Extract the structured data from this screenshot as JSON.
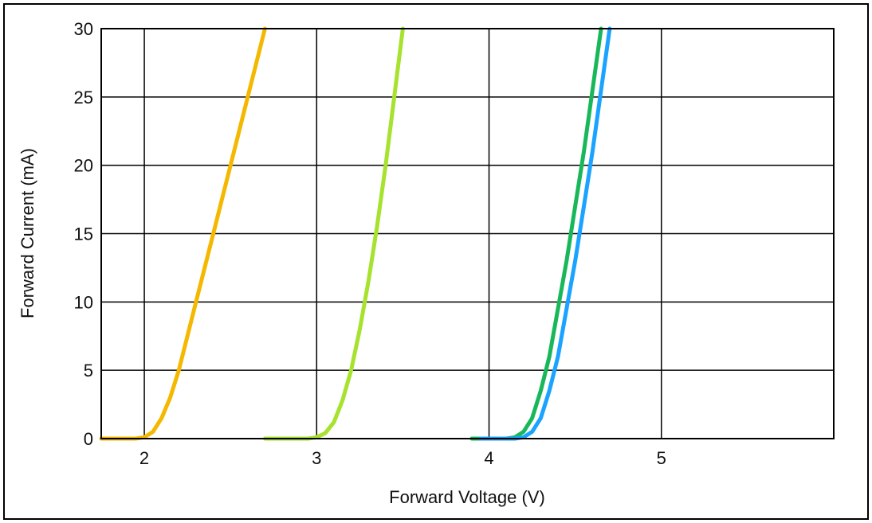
{
  "chart_data": {
    "type": "line",
    "title": "",
    "ylabel": "Forward Current (mA)",
    "xlabel": "Forward Voltage (V)",
    "xlim": [
      1.75,
      6.0
    ],
    "ylim": [
      0,
      30
    ],
    "x_ticks": [
      2,
      3,
      4,
      5
    ],
    "y_ticks": [
      0,
      5,
      10,
      15,
      20,
      25,
      30
    ],
    "grid": true,
    "legend": "none",
    "series": [
      {
        "color": "#f5b800",
        "x": [
          1.75,
          1.95,
          2.0,
          2.05,
          2.1,
          2.15,
          2.2,
          2.25,
          2.3,
          2.4,
          2.5,
          2.6,
          2.7
        ],
        "y": [
          0,
          0,
          0.1,
          0.5,
          1.5,
          3.0,
          5.0,
          7.5,
          10.0,
          15.0,
          20.0,
          25.0,
          30.0
        ]
      },
      {
        "color": "#a6e22e",
        "x": [
          2.7,
          2.95,
          3.0,
          3.05,
          3.1,
          3.15,
          3.2,
          3.25,
          3.3,
          3.35,
          3.4,
          3.45,
          3.5
        ],
        "y": [
          0,
          0,
          0.1,
          0.4,
          1.2,
          2.8,
          5.0,
          8.0,
          11.5,
          15.5,
          20.0,
          25.0,
          30.0
        ]
      },
      {
        "color": "#18b85a",
        "x": [
          3.9,
          4.1,
          4.15,
          4.2,
          4.25,
          4.3,
          4.35,
          4.4,
          4.45,
          4.5,
          4.55,
          4.6,
          4.65
        ],
        "y": [
          0,
          0,
          0.1,
          0.5,
          1.5,
          3.5,
          6.0,
          9.5,
          13.0,
          17.0,
          21.0,
          25.5,
          30.0
        ]
      },
      {
        "color": "#1aa3ff",
        "x": [
          3.95,
          4.15,
          4.2,
          4.25,
          4.3,
          4.35,
          4.4,
          4.45,
          4.5,
          4.55,
          4.6,
          4.65,
          4.7
        ],
        "y": [
          0,
          0,
          0.1,
          0.5,
          1.5,
          3.5,
          6.0,
          9.5,
          13.0,
          17.0,
          21.0,
          25.5,
          30.0
        ]
      }
    ]
  }
}
